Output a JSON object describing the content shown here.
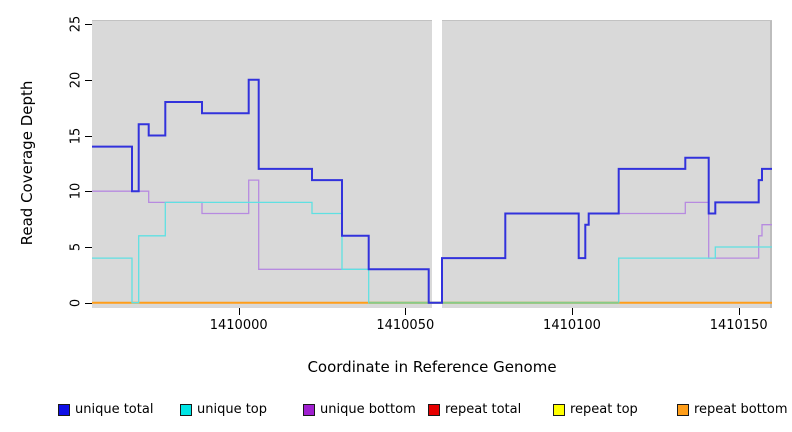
{
  "y_axis": {
    "title": "Read Coverage Depth",
    "ticks": [
      0,
      5,
      10,
      15,
      20,
      25
    ]
  },
  "x_axis": {
    "title": "Coordinate in Reference Genome",
    "ticks": [
      1410000,
      1410050,
      1410100,
      1410150
    ]
  },
  "panel": {
    "background": "#d9d9d9",
    "gap_color": "#ffffff"
  },
  "legend": {
    "items": [
      {
        "label": "unique total",
        "color": "#0f0fe6"
      },
      {
        "label": "unique top",
        "color": "#00e5e5"
      },
      {
        "label": "unique bottom",
        "color": "#a020d0"
      },
      {
        "label": "repeat total",
        "color": "#e60000"
      },
      {
        "label": "repeat top",
        "color": "#ffff00"
      },
      {
        "label": "repeat bottom",
        "color": "#ff9e1a"
      }
    ]
  },
  "chart_data": {
    "type": "line",
    "subtype": "step",
    "title": "",
    "xlabel": "Coordinate in Reference Genome",
    "ylabel": "Read Coverage Depth",
    "xlim": [
      1409956,
      1410160
    ],
    "ylim": [
      0,
      25
    ],
    "grid": false,
    "legend_position": "bottom",
    "no_data_gap": {
      "start": 1410058,
      "end": 1410061
    },
    "blend_segment": {
      "start": 1410039,
      "end": 1410114,
      "value": 0,
      "color": "#85cb8a",
      "note": "unique-top at depth 0 overlapping repeat-bottom renders greenish"
    },
    "series": [
      {
        "name": "unique total",
        "color": "#3232dc",
        "width": 2,
        "points": [
          [
            1409956,
            14
          ],
          [
            1409968,
            10
          ],
          [
            1409970,
            16
          ],
          [
            1409973,
            15
          ],
          [
            1409978,
            18
          ],
          [
            1409989,
            17
          ],
          [
            1410003,
            20
          ],
          [
            1410006,
            12
          ],
          [
            1410022,
            11
          ],
          [
            1410031,
            6
          ],
          [
            1410039,
            3
          ],
          [
            1410057,
            0
          ],
          [
            1410061,
            4
          ],
          [
            1410080,
            8
          ],
          [
            1410102,
            4
          ],
          [
            1410104,
            7
          ],
          [
            1410105,
            8
          ],
          [
            1410114,
            12
          ],
          [
            1410134,
            13
          ],
          [
            1410141,
            8
          ],
          [
            1410143,
            9
          ],
          [
            1410156,
            11
          ],
          [
            1410157,
            12
          ],
          [
            1410160,
            12
          ]
        ]
      },
      {
        "name": "unique top",
        "color": "#5fe0e2",
        "width": 1.3,
        "points": [
          [
            1409956,
            4
          ],
          [
            1409968,
            0
          ],
          [
            1409970,
            6
          ],
          [
            1409978,
            9
          ],
          [
            1410022,
            8
          ],
          [
            1410031,
            3
          ],
          [
            1410039,
            0
          ],
          [
            1410114,
            4
          ],
          [
            1410143,
            5
          ],
          [
            1410160,
            5
          ]
        ]
      },
      {
        "name": "unique bottom",
        "color": "#b78ae0",
        "width": 1.3,
        "points": [
          [
            1409956,
            10
          ],
          [
            1409973,
            9
          ],
          [
            1409989,
            8
          ],
          [
            1410003,
            11
          ],
          [
            1410006,
            3
          ],
          [
            1410057,
            0
          ],
          [
            1410061,
            4
          ],
          [
            1410080,
            8
          ],
          [
            1410102,
            4
          ],
          [
            1410104,
            7
          ],
          [
            1410105,
            8
          ],
          [
            1410134,
            9
          ],
          [
            1410141,
            4
          ],
          [
            1410156,
            6
          ],
          [
            1410157,
            7
          ],
          [
            1410160,
            7
          ]
        ]
      },
      {
        "name": "repeat total",
        "color": "#e60000",
        "width": 1,
        "points": [
          [
            1409956,
            0
          ],
          [
            1410160,
            0
          ]
        ]
      },
      {
        "name": "repeat top",
        "color": "#ffff00",
        "width": 1,
        "points": [
          [
            1409956,
            0
          ],
          [
            1410160,
            0
          ]
        ]
      },
      {
        "name": "repeat bottom",
        "color": "#ff9e1a",
        "width": 2,
        "points": [
          [
            1409956,
            0
          ],
          [
            1410160,
            0
          ]
        ]
      }
    ]
  }
}
